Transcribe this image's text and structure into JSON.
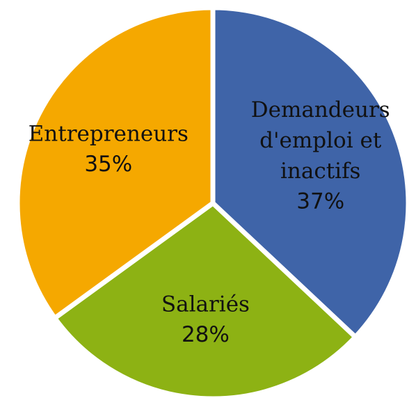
{
  "chart_data": {
    "type": "pie",
    "categories": [
      "Demandeurs d'emploi et inactifs",
      "Salariés",
      "Entrepreneurs"
    ],
    "values": [
      37,
      28,
      35
    ],
    "value_labels": [
      "37%",
      "28%",
      "35%"
    ],
    "colors": [
      "#3f64a8",
      "#8db214",
      "#f5a800"
    ]
  }
}
